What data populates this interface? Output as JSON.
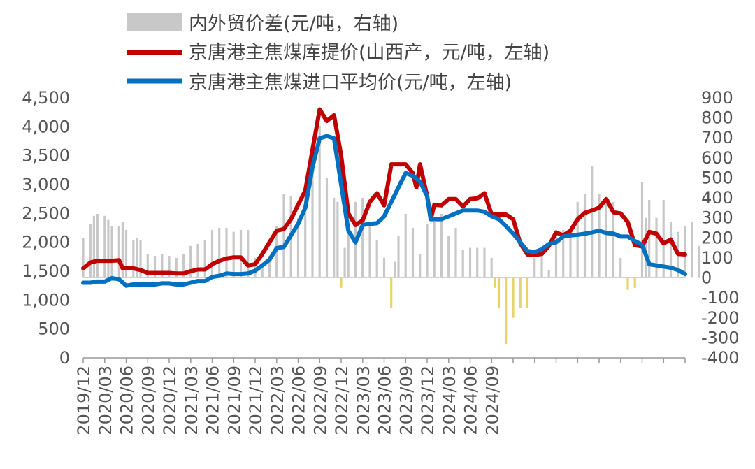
{
  "chart_data": {
    "type": "line",
    "title": "",
    "legend_position": "top",
    "grid": false,
    "x_ticks": [
      "2019/12",
      "2020/03",
      "2020/06",
      "2020/09",
      "2020/12",
      "2021/03",
      "2021/06",
      "2021/09",
      "2021/12",
      "2022/03",
      "2022/06",
      "2022/09",
      "2022/12",
      "2023/03",
      "2023/06",
      "2023/09",
      "2023/12",
      "2024/03",
      "2024/06",
      "2024/09"
    ],
    "x_range": [
      "2019/12",
      "2024/09"
    ],
    "y_left": {
      "range": [
        0,
        4500
      ],
      "ticks": [
        "0",
        "500",
        "1,000",
        "1,500",
        "2,000",
        "2,500",
        "3,000",
        "3,500",
        "4,000",
        "4,500"
      ]
    },
    "y_right": {
      "range": [
        -400,
        900
      ],
      "ticks": [
        "-400",
        "-300",
        "-200",
        "-100",
        "0",
        "100",
        "200",
        "300",
        "400",
        "500",
        "600",
        "700",
        "800",
        "900"
      ]
    },
    "series": [
      {
        "name": "内外贸价差(元/吨，右轴)",
        "type": "bar",
        "axis": "right",
        "color": "#c8c8c8",
        "negative_color": "#e8d36a",
        "points": [
          [
            0,
            200
          ],
          [
            1,
            270
          ],
          [
            1.5,
            310
          ],
          [
            2,
            320
          ],
          [
            3,
            310
          ],
          [
            3.5,
            290
          ],
          [
            4,
            260
          ],
          [
            5,
            260
          ],
          [
            5.5,
            280
          ],
          [
            6,
            240
          ],
          [
            7,
            190
          ],
          [
            7.5,
            200
          ],
          [
            8,
            190
          ],
          [
            9,
            120
          ],
          [
            10,
            110
          ],
          [
            11,
            120
          ],
          [
            12,
            110
          ],
          [
            13,
            100
          ],
          [
            14,
            120
          ],
          [
            15,
            160
          ],
          [
            16,
            170
          ],
          [
            17,
            190
          ],
          [
            18,
            240
          ],
          [
            19,
            250
          ],
          [
            20,
            250
          ],
          [
            21,
            230
          ],
          [
            22,
            240
          ],
          [
            23,
            240
          ],
          [
            24,
            100
          ],
          [
            25,
            50
          ],
          [
            26,
            110
          ],
          [
            27,
            260
          ],
          [
            28,
            420
          ],
          [
            29,
            410
          ],
          [
            30,
            300
          ],
          [
            31,
            460
          ],
          [
            32,
            650
          ],
          [
            33,
            760
          ],
          [
            34,
            500
          ],
          [
            35,
            400
          ],
          [
            35.5,
            380
          ],
          [
            36,
            -50
          ],
          [
            36.5,
            150
          ],
          [
            37,
            350
          ],
          [
            38,
            380
          ],
          [
            39,
            400
          ],
          [
            40,
            260
          ],
          [
            41,
            190
          ],
          [
            42,
            100
          ],
          [
            43,
            -150
          ],
          [
            43.5,
            80
          ],
          [
            44,
            210
          ],
          [
            45,
            320
          ],
          [
            46,
            250
          ],
          [
            47,
            120
          ],
          [
            48,
            270
          ],
          [
            49,
            280
          ],
          [
            50,
            320
          ],
          [
            51,
            210
          ],
          [
            52,
            250
          ],
          [
            53,
            140
          ],
          [
            54,
            150
          ],
          [
            55,
            150
          ],
          [
            56,
            150
          ],
          [
            57,
            100
          ],
          [
            57.5,
            -50
          ],
          [
            58,
            -150
          ],
          [
            59,
            -330
          ],
          [
            60,
            -200
          ],
          [
            61,
            -150
          ],
          [
            62,
            -150
          ],
          [
            63,
            100
          ],
          [
            64,
            120
          ],
          [
            65,
            40
          ],
          [
            66,
            240
          ],
          [
            67,
            240
          ],
          [
            68,
            220
          ],
          [
            69,
            380
          ],
          [
            70,
            420
          ],
          [
            71,
            560
          ],
          [
            72,
            420
          ],
          [
            73,
            400
          ],
          [
            74,
            380
          ],
          [
            75,
            100
          ],
          [
            76,
            -60
          ],
          [
            77,
            -50
          ],
          [
            78,
            480
          ],
          [
            78.5,
            300
          ],
          [
            79,
            390
          ],
          [
            80,
            300
          ],
          [
            81,
            390
          ],
          [
            82,
            280
          ],
          [
            83,
            230
          ],
          [
            84,
            260
          ],
          [
            85,
            280
          ],
          [
            86,
            160
          ]
        ]
      },
      {
        "name": "京唐港主焦煤库提价(山西产，元/吨，左轴)",
        "type": "line",
        "axis": "left",
        "color": "#c00000",
        "points": [
          [
            0,
            1550
          ],
          [
            1,
            1650
          ],
          [
            2,
            1680
          ],
          [
            3,
            1680
          ],
          [
            4,
            1680
          ],
          [
            5,
            1690
          ],
          [
            5.5,
            1550
          ],
          [
            6,
            1550
          ],
          [
            7,
            1550
          ],
          [
            8,
            1520
          ],
          [
            9,
            1470
          ],
          [
            10,
            1470
          ],
          [
            11,
            1470
          ],
          [
            12,
            1470
          ],
          [
            13,
            1460
          ],
          [
            14,
            1460
          ],
          [
            15,
            1500
          ],
          [
            16,
            1530
          ],
          [
            17,
            1530
          ],
          [
            18,
            1620
          ],
          [
            19,
            1680
          ],
          [
            20,
            1720
          ],
          [
            21,
            1740
          ],
          [
            22,
            1740
          ],
          [
            23,
            1600
          ],
          [
            24,
            1620
          ],
          [
            25,
            1800
          ],
          [
            26,
            2000
          ],
          [
            27,
            2200
          ],
          [
            28,
            2230
          ],
          [
            29,
            2400
          ],
          [
            30,
            2650
          ],
          [
            31,
            2900
          ],
          [
            32,
            3600
          ],
          [
            33,
            4300
          ],
          [
            34,
            4100
          ],
          [
            35,
            4200
          ],
          [
            36,
            3500
          ],
          [
            37,
            2500
          ],
          [
            38,
            2300
          ],
          [
            39,
            2380
          ],
          [
            40,
            2700
          ],
          [
            41,
            2850
          ],
          [
            42,
            2640
          ],
          [
            43,
            3350
          ],
          [
            44,
            3350
          ],
          [
            45,
            3350
          ],
          [
            46,
            3200
          ],
          [
            46.5,
            2950
          ],
          [
            47,
            3350
          ],
          [
            48,
            2800
          ],
          [
            48.5,
            2400
          ],
          [
            49,
            2650
          ],
          [
            50,
            2640
          ],
          [
            51,
            2750
          ],
          [
            52,
            2750
          ],
          [
            53,
            2620
          ],
          [
            54,
            2750
          ],
          [
            55,
            2760
          ],
          [
            56,
            2850
          ],
          [
            57,
            2480
          ],
          [
            58,
            2480
          ],
          [
            59,
            2480
          ],
          [
            60,
            2400
          ],
          [
            61,
            1980
          ],
          [
            62,
            1790
          ],
          [
            63,
            1780
          ],
          [
            64,
            1800
          ],
          [
            65,
            1940
          ],
          [
            66,
            2170
          ],
          [
            67,
            2120
          ],
          [
            68,
            2200
          ],
          [
            69,
            2400
          ],
          [
            70,
            2510
          ],
          [
            71,
            2550
          ],
          [
            72,
            2600
          ],
          [
            73,
            2750
          ],
          [
            74,
            2520
          ],
          [
            75,
            2500
          ],
          [
            76,
            2350
          ],
          [
            77,
            1950
          ],
          [
            78,
            1930
          ],
          [
            79,
            2180
          ],
          [
            80,
            2150
          ],
          [
            81,
            1980
          ],
          [
            82,
            2050
          ],
          [
            83,
            1800
          ],
          [
            84,
            1790
          ]
        ]
      },
      {
        "name": "京唐港主焦煤进口平均价(元/吨，左轴)",
        "type": "line",
        "axis": "left",
        "color": "#0070c0",
        "points": [
          [
            0,
            1300
          ],
          [
            1,
            1300
          ],
          [
            2,
            1320
          ],
          [
            3,
            1320
          ],
          [
            4,
            1380
          ],
          [
            5,
            1360
          ],
          [
            6,
            1250
          ],
          [
            7,
            1270
          ],
          [
            8,
            1270
          ],
          [
            9,
            1270
          ],
          [
            10,
            1270
          ],
          [
            11,
            1290
          ],
          [
            12,
            1290
          ],
          [
            13,
            1270
          ],
          [
            14,
            1270
          ],
          [
            15,
            1300
          ],
          [
            16,
            1330
          ],
          [
            17,
            1330
          ],
          [
            18,
            1400
          ],
          [
            19,
            1420
          ],
          [
            20,
            1460
          ],
          [
            21,
            1450
          ],
          [
            22,
            1450
          ],
          [
            23,
            1460
          ],
          [
            24,
            1510
          ],
          [
            25,
            1600
          ],
          [
            26,
            1700
          ],
          [
            27,
            1900
          ],
          [
            28,
            1920
          ],
          [
            29,
            2120
          ],
          [
            30,
            2320
          ],
          [
            31,
            2600
          ],
          [
            32,
            3300
          ],
          [
            33,
            3800
          ],
          [
            34,
            3840
          ],
          [
            35,
            3800
          ],
          [
            36,
            3000
          ],
          [
            37,
            2200
          ],
          [
            38,
            2000
          ],
          [
            39,
            2300
          ],
          [
            40,
            2320
          ],
          [
            41,
            2330
          ],
          [
            42,
            2450
          ],
          [
            43,
            2700
          ],
          [
            44,
            2950
          ],
          [
            45,
            3200
          ],
          [
            46,
            3150
          ],
          [
            47,
            3050
          ],
          [
            48,
            2800
          ],
          [
            48.5,
            2400
          ],
          [
            49,
            2400
          ],
          [
            50,
            2400
          ],
          [
            51,
            2450
          ],
          [
            52,
            2500
          ],
          [
            53,
            2550
          ],
          [
            54,
            2550
          ],
          [
            55,
            2550
          ],
          [
            56,
            2530
          ],
          [
            57,
            2450
          ],
          [
            58,
            2400
          ],
          [
            59,
            2280
          ],
          [
            60,
            2150
          ],
          [
            61,
            2000
          ],
          [
            62,
            1850
          ],
          [
            63,
            1830
          ],
          [
            64,
            1880
          ],
          [
            65,
            1970
          ],
          [
            66,
            2000
          ],
          [
            67,
            2100
          ],
          [
            68,
            2120
          ],
          [
            69,
            2130
          ],
          [
            70,
            2150
          ],
          [
            71,
            2170
          ],
          [
            72,
            2200
          ],
          [
            73,
            2160
          ],
          [
            74,
            2150
          ],
          [
            75,
            2100
          ],
          [
            76,
            2100
          ],
          [
            77,
            2020
          ],
          [
            78,
            1960
          ],
          [
            79,
            1620
          ],
          [
            80,
            1600
          ],
          [
            81,
            1580
          ],
          [
            82,
            1560
          ],
          [
            83,
            1520
          ],
          [
            84,
            1450
          ]
        ]
      }
    ]
  }
}
